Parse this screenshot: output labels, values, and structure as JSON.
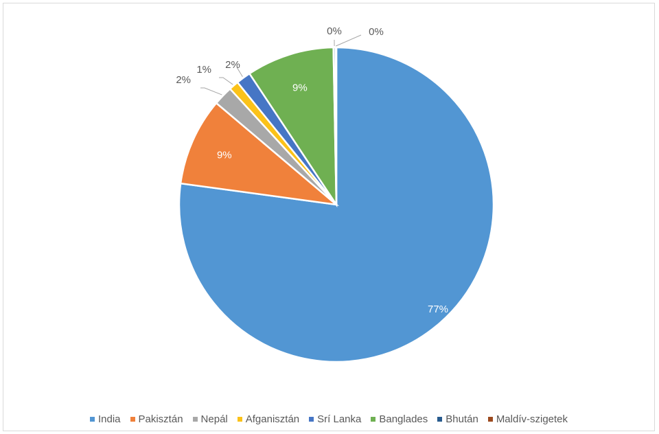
{
  "chart_data": {
    "type": "pie",
    "title": "",
    "start_angle_deg": 90,
    "direction": "clockwise",
    "label_color_inside": "#ffffff",
    "label_color_outside": "#595959",
    "slices": [
      {
        "name": "India",
        "value": 77,
        "label": "77%",
        "color": "#5296d3",
        "label_pos": "inside"
      },
      {
        "name": "Pakisztán",
        "value": 9,
        "label": "9%",
        "color": "#f0813b",
        "label_pos": "inside"
      },
      {
        "name": "Nepál",
        "value": 2,
        "label": "2%",
        "color": "#a8a8a8",
        "label_pos": "outside"
      },
      {
        "name": "Afganisztán",
        "value": 1,
        "label": "1%",
        "color": "#fbc219",
        "label_pos": "outside"
      },
      {
        "name": "Srí Lanka",
        "value": 1.5,
        "label": "2%",
        "color": "#4676c5",
        "label_pos": "outside"
      },
      {
        "name": "Banglades",
        "value": 9,
        "label": "9%",
        "color": "#6fb052",
        "label_pos": "inside"
      },
      {
        "name": "Bhután",
        "value": 0.2,
        "label": "0%",
        "color": "#285b8e",
        "label_pos": "outside"
      },
      {
        "name": "Maldív-szigetek",
        "value": 0.1,
        "label": "0%",
        "color": "#9c4a1f",
        "label_pos": "outside"
      }
    ],
    "legend_position": "bottom"
  }
}
